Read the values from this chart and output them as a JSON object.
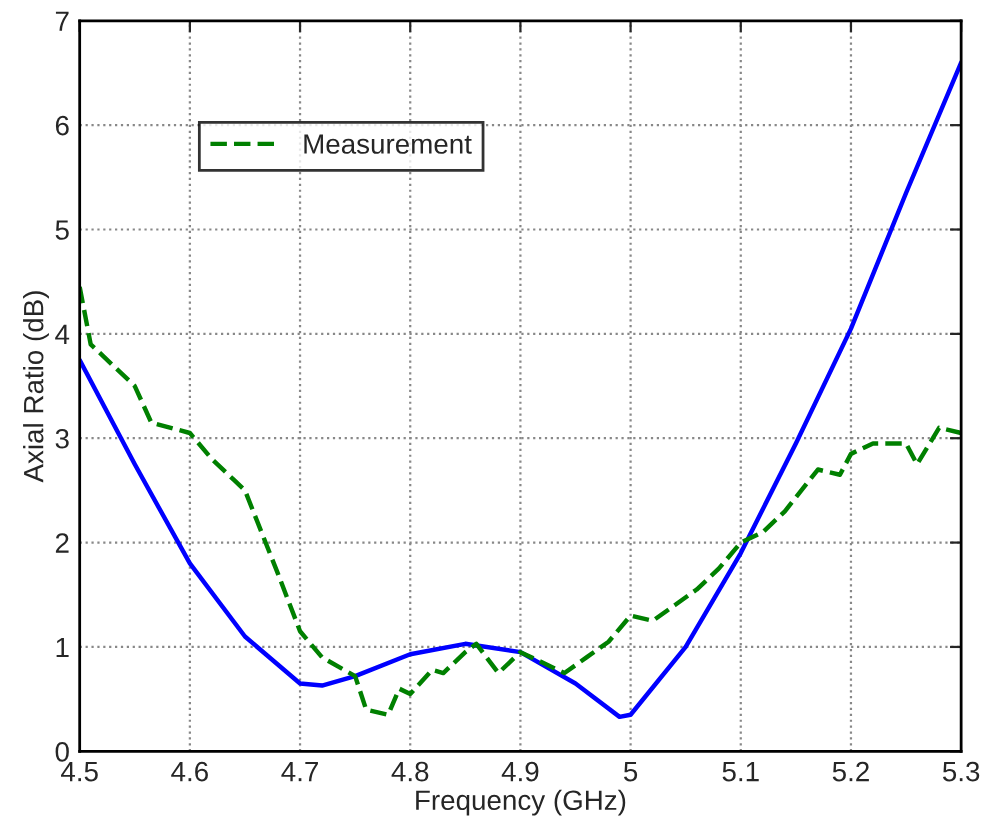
{
  "chart_data": {
    "type": "line",
    "xlabel": "Frequency (GHz)",
    "ylabel": "Axial Ratio (dB)",
    "xlim": [
      4.5,
      5.3
    ],
    "xticks": [
      4.5,
      4.6,
      4.7,
      4.8,
      4.9,
      5,
      5.1,
      5.2,
      5.3
    ],
    "ylim": [
      0,
      7
    ],
    "yticks": [
      0,
      1,
      2,
      3,
      4,
      5,
      6,
      7
    ],
    "grid": true,
    "legend": "top left",
    "series": [
      {
        "color": "#0000ff",
        "line_style": "solid",
        "x": [
          4.5,
          4.55,
          4.6,
          4.65,
          4.7,
          4.72,
          4.75,
          4.8,
          4.85,
          4.9,
          4.95,
          4.99,
          5.0,
          5.05,
          5.1,
          5.15,
          5.2,
          5.25,
          5.3
        ],
        "values": [
          3.75,
          2.75,
          1.8,
          1.1,
          0.65,
          0.63,
          0.72,
          0.93,
          1.03,
          0.95,
          0.65,
          0.33,
          0.35,
          1.0,
          1.9,
          2.95,
          4.05,
          5.35,
          6.6
        ]
      },
      {
        "name": "Measurement",
        "color": "#008000",
        "line_style": "dashed",
        "x": [
          4.5,
          4.51,
          4.55,
          4.565,
          4.6,
          4.62,
          4.64,
          4.65,
          4.68,
          4.7,
          4.72,
          4.75,
          4.76,
          4.78,
          4.79,
          4.8,
          4.82,
          4.83,
          4.85,
          4.86,
          4.88,
          4.9,
          4.92,
          4.94,
          4.96,
          4.98,
          5.0,
          5.02,
          5.04,
          5.06,
          5.08,
          5.1,
          5.12,
          5.14,
          5.17,
          5.19,
          5.2,
          5.22,
          5.25,
          5.26,
          5.28,
          5.3
        ],
        "values": [
          4.45,
          3.9,
          3.5,
          3.15,
          3.05,
          2.8,
          2.6,
          2.5,
          1.7,
          1.15,
          0.9,
          0.72,
          0.4,
          0.35,
          0.6,
          0.55,
          0.78,
          0.75,
          0.95,
          1.03,
          0.75,
          0.95,
          0.85,
          0.75,
          0.9,
          1.05,
          1.3,
          1.25,
          1.4,
          1.55,
          1.75,
          2.0,
          2.1,
          2.3,
          2.7,
          2.65,
          2.85,
          2.95,
          2.95,
          2.75,
          3.1,
          3.05
        ]
      }
    ]
  }
}
